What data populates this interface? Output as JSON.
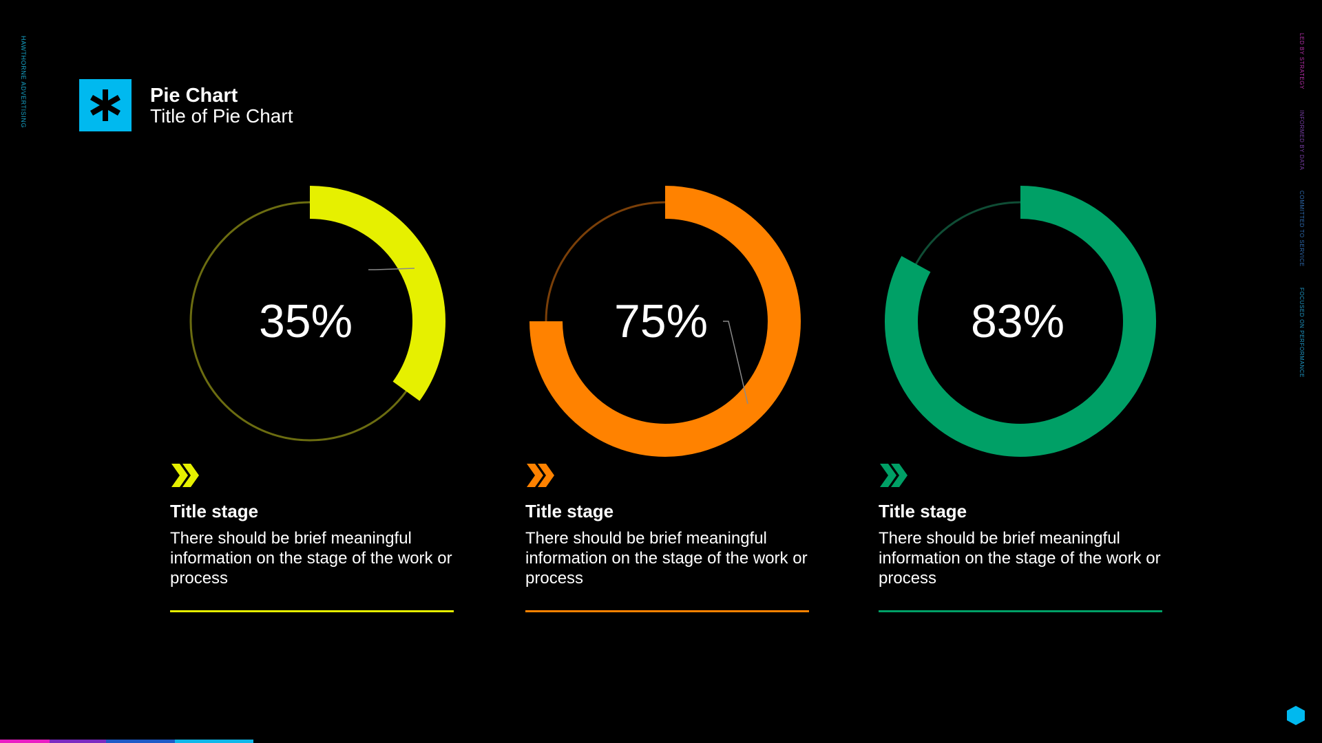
{
  "side_text": {
    "left": "HAWTHORNE ADVERTISING",
    "right": [
      {
        "text": "LED BY STRATEGY",
        "color": "#b52fa8"
      },
      {
        "text": "INFORMED BY DATA",
        "color": "#7a3fa7"
      },
      {
        "text": "COMMITTED TO SERVICE",
        "color": "#2f6bb0"
      },
      {
        "text": "FOCUSED ON PERFORMANCE",
        "color": "#1f97c5"
      }
    ]
  },
  "header": {
    "icon": "asterisk-icon",
    "accent": "#00b9ef",
    "title": "Pie Chart",
    "subtitle": "Title of Pie Chart"
  },
  "chart_data": [
    {
      "type": "pie",
      "values": [
        35
      ],
      "label": "35%",
      "color": "#e6f000",
      "track": "#6b6c10"
    },
    {
      "type": "pie",
      "values": [
        75
      ],
      "label": "75%",
      "color": "#ff8200",
      "track": "#7a3f08"
    },
    {
      "type": "pie",
      "values": [
        83
      ],
      "label": "83%",
      "color": "#00a066",
      "track": "#0f4d35"
    }
  ],
  "stages": [
    {
      "title": "Title stage",
      "description": "There should be brief meaningful information on the stage of the work or process",
      "color": "#e6f000"
    },
    {
      "title": "Title stage",
      "description": "There should be brief meaningful information on the stage of the work or process",
      "color": "#ff8200"
    },
    {
      "title": "Title stage",
      "description": "There should be brief meaningful information on the stage of the work or process",
      "color": "#00a066"
    }
  ],
  "footer": {
    "bar_colors": [
      "#e91ec4",
      "#7a2cc2",
      "#1e5ac7",
      "#0fb8ea"
    ],
    "hex_color": "#00b9ef"
  }
}
